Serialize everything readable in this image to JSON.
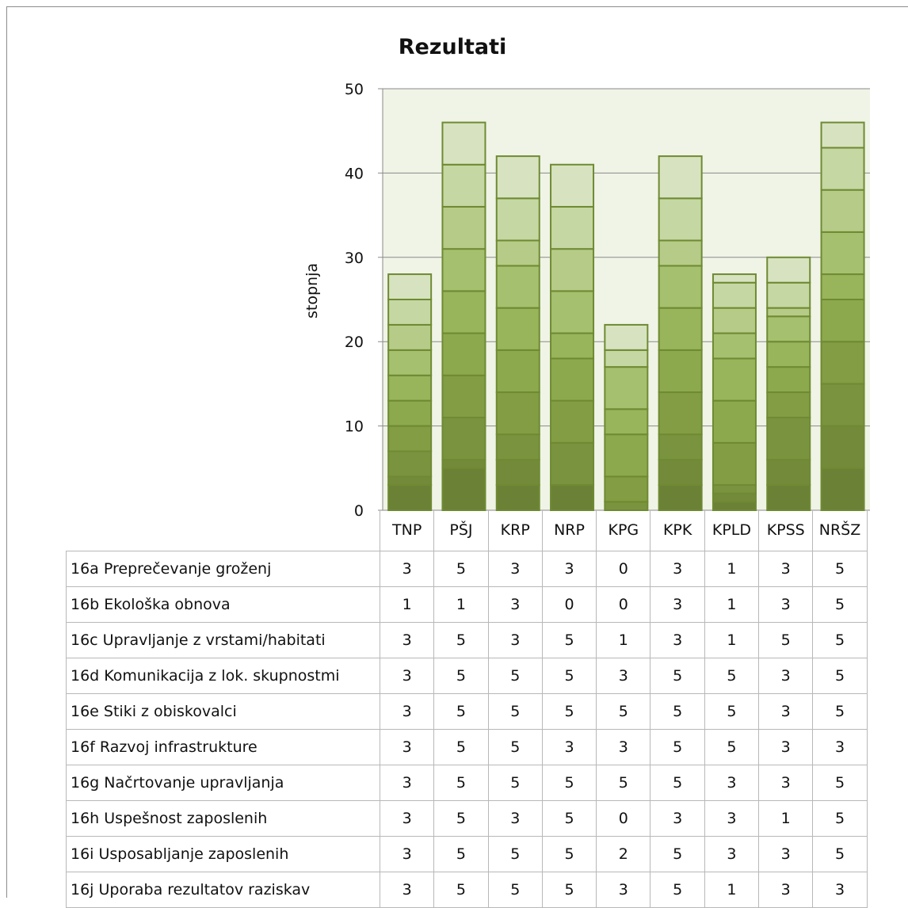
{
  "chart_data": {
    "type": "bar",
    "stacked": true,
    "title": "Rezultati",
    "ylabel": "stopnja",
    "xlabel": "",
    "ylim": [
      0,
      50
    ],
    "yticks": [
      0,
      10,
      20,
      30,
      40,
      50
    ],
    "grid": true,
    "legend": "table-below",
    "categories": [
      "TNP",
      "PŠJ",
      "KRP",
      "NRP",
      "KPG",
      "KPK",
      "KPLD",
      "KPSS",
      "NRŠZ"
    ],
    "series": [
      {
        "name": "16a Preprečevanje groženj",
        "values": [
          3,
          5,
          3,
          3,
          0,
          3,
          1,
          3,
          5
        ],
        "color": "#6b8136"
      },
      {
        "name": "16b Ekološka obnova",
        "values": [
          1,
          1,
          3,
          0,
          0,
          3,
          1,
          3,
          5
        ],
        "color": "#728a3a"
      },
      {
        "name": "16c Upravljanje z vrstami/habitati",
        "values": [
          3,
          5,
          3,
          5,
          1,
          3,
          1,
          5,
          5
        ],
        "color": "#7a933f"
      },
      {
        "name": "16d Komunikacija z lok. skupnostmi",
        "values": [
          3,
          5,
          5,
          5,
          3,
          5,
          5,
          3,
          5
        ],
        "color": "#839d45"
      },
      {
        "name": "16e Stiki z obiskovalci",
        "values": [
          3,
          5,
          5,
          5,
          5,
          5,
          5,
          3,
          5
        ],
        "color": "#8da94e"
      },
      {
        "name": "16f Razvoj infrastrukture",
        "values": [
          3,
          5,
          5,
          3,
          3,
          5,
          5,
          3,
          3
        ],
        "color": "#98b55b"
      },
      {
        "name": "16g Načrtovanje upravljanja",
        "values": [
          3,
          5,
          5,
          5,
          5,
          5,
          3,
          3,
          5
        ],
        "color": "#a5c06e"
      },
      {
        "name": "16h Uspešnost zaposlenih",
        "values": [
          3,
          5,
          3,
          5,
          0,
          3,
          3,
          1,
          5
        ],
        "color": "#b5cb87"
      },
      {
        "name": "16i Usposabljanje zaposlenih",
        "values": [
          3,
          5,
          5,
          5,
          2,
          5,
          3,
          3,
          5
        ],
        "color": "#c5d7a3"
      },
      {
        "name": "16j Uporaba rezultatov raziskav",
        "values": [
          3,
          5,
          5,
          5,
          3,
          5,
          1,
          3,
          3
        ],
        "color": "#d7e3c0"
      }
    ],
    "colors": {
      "plot_bg": "#eff4e6",
      "bar_outline": "#6f8a32",
      "grid": "#8a8a8a"
    }
  }
}
